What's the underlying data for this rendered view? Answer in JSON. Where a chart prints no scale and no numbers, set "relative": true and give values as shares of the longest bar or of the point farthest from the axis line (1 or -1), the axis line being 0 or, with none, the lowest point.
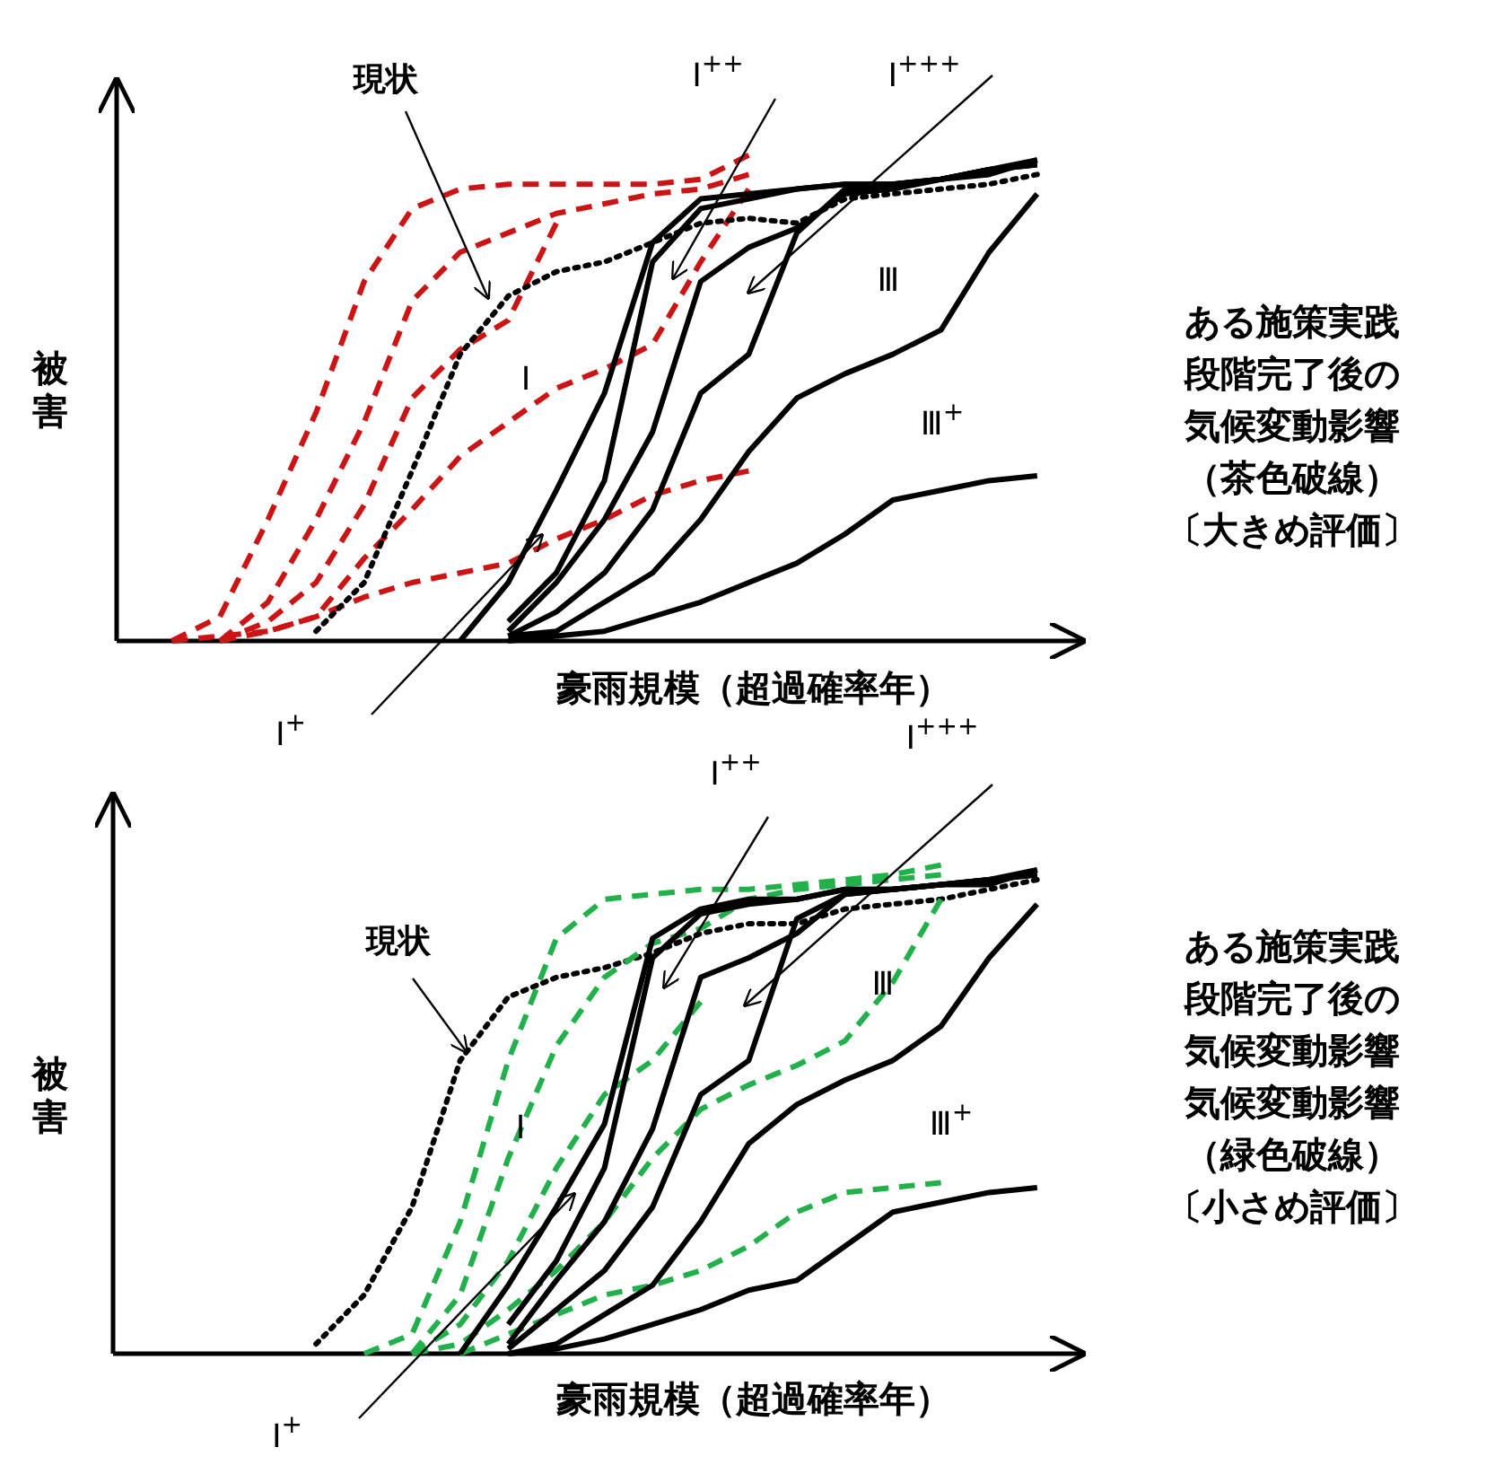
{
  "chart_data": [
    {
      "type": "line",
      "relative": true,
      "xlabel": "豪雨規模（超過確率年）",
      "ylabel": "被害",
      "categories": [
        null,
        null,
        null,
        null,
        null,
        null,
        null,
        null,
        null,
        null,
        null,
        null,
        null,
        null,
        null,
        null,
        null,
        null,
        null
      ],
      "series": [
        {
          "color": "#cc1414",
          "line_style": "dashed",
          "values": [
            0,
            0.05,
            0.25,
            0.47,
            0.74,
            0.89,
            0.93,
            0.94,
            0.94,
            0.94,
            0.94,
            0.95,
            1,
            null,
            null,
            null,
            null,
            null,
            null
          ]
        },
        {
          "color": "#cc1414",
          "line_style": "dashed",
          "values": [
            null,
            0,
            0.08,
            0.25,
            0.45,
            0.7,
            0.8,
            0.84,
            0.88,
            0.9,
            0.92,
            0.93,
            0.96,
            null,
            null,
            null,
            null,
            null,
            null
          ]
        },
        {
          "color": "#cc1414",
          "line_style": "dashed",
          "values": [
            null,
            0,
            0.04,
            0.12,
            0.28,
            0.5,
            0.6,
            0.66,
            0.86,
            null,
            null,
            null,
            null,
            null,
            null,
            null,
            null,
            null,
            null
          ]
        },
        {
          "color": "#cc1414",
          "line_style": "dashed",
          "values": [
            null,
            0,
            0.02,
            0.05,
            0.17,
            0.27,
            0.38,
            0.45,
            0.52,
            0.56,
            0.61,
            0.78,
            0.93,
            null,
            null,
            null,
            null,
            null,
            null
          ]
        },
        {
          "color": "#cc1414",
          "line_style": "dashed",
          "values": [
            0,
            0.01,
            0.02,
            0.05,
            0.09,
            0.12,
            0.14,
            0.16,
            0.21,
            0.25,
            0.3,
            0.33,
            0.35,
            null,
            null,
            null,
            null,
            null,
            null
          ]
        },
        {
          "name": "現状",
          "color": "#000000",
          "line_style": "dotted",
          "values": [
            null,
            null,
            null,
            0.02,
            0.12,
            0.35,
            0.59,
            0.71,
            0.76,
            0.78,
            0.82,
            0.86,
            0.87,
            0.86,
            0.91,
            0.92,
            0.93,
            0.94,
            0.96
          ]
        },
        {
          "color": "#000000",
          "line_style": "solid",
          "values": [
            null,
            null,
            null,
            null,
            null,
            null,
            0,
            0.12,
            0.31,
            0.51,
            0.82,
            0.91,
            0.92,
            0.93,
            0.94,
            0.94,
            0.95,
            0.97,
            0.99
          ]
        },
        {
          "color": "#000000",
          "line_style": "solid",
          "values": [
            null,
            null,
            null,
            null,
            null,
            null,
            null,
            0.04,
            0.14,
            0.33,
            0.78,
            0.89,
            0.91,
            0.93,
            0.94,
            0.94,
            0.95,
            0.97,
            0.98
          ]
        },
        {
          "color": "#000000",
          "line_style": "solid",
          "values": [
            null,
            null,
            null,
            null,
            null,
            null,
            null,
            0.02,
            0.12,
            0.25,
            0.43,
            0.74,
            0.81,
            0.85,
            0.92,
            0.93,
            0.95,
            0.96,
            0.99
          ]
        },
        {
          "color": "#000000",
          "line_style": "solid",
          "values": [
            null,
            null,
            null,
            null,
            null,
            null,
            null,
            0.01,
            0.06,
            0.14,
            0.27,
            0.51,
            0.59,
            0.84,
            0.93,
            0.94,
            0.95,
            0.97,
            0.98
          ]
        },
        {
          "color": "#000000",
          "line_style": "solid",
          "values": [
            null,
            null,
            null,
            null,
            null,
            null,
            null,
            0.01,
            0.02,
            0.08,
            0.14,
            0.25,
            0.39,
            0.5,
            0.55,
            0.59,
            0.64,
            0.8,
            0.92
          ]
        },
        {
          "color": "#000000",
          "line_style": "solid",
          "values": [
            null,
            null,
            null,
            null,
            null,
            null,
            null,
            0,
            0.01,
            0.02,
            0.05,
            0.08,
            0.12,
            0.16,
            0.22,
            0.29,
            0.31,
            0.33,
            0.34
          ]
        }
      ],
      "annotations": [
        "Ⅰ$^{++}$",
        "Ⅰ$^{+++}$",
        "Ⅲ",
        "Ⅲ$^{+}$",
        "Ⅰ",
        "Ⅰ$^{+}$",
        "ある施策実践",
        "段階完了後の",
        "気候変動影響",
        "（茶色破線）",
        "〔大きめ評価〕"
      ]
    },
    {
      "type": "line",
      "relative": true,
      "xlabel": "豪雨規模（超過確率年）",
      "ylabel": "被害",
      "categories": [
        null,
        null,
        null,
        null,
        null,
        null,
        null,
        null,
        null,
        null,
        null,
        null,
        null,
        null,
        null,
        null,
        null,
        null,
        null
      ],
      "series": [
        {
          "name": "現状",
          "color": "#000000",
          "line_style": "dotted",
          "values": [
            null,
            null,
            null,
            0.02,
            0.12,
            0.3,
            0.6,
            0.73,
            0.77,
            0.79,
            0.82,
            0.86,
            0.88,
            0.88,
            0.91,
            0.92,
            0.93,
            0.95,
            0.97
          ]
        },
        {
          "color": "#22b04b",
          "line_style": "dashed",
          "values": [
            null,
            null,
            null,
            null,
            0,
            0.04,
            0.27,
            0.6,
            0.85,
            0.93,
            0.94,
            0.95,
            0.95,
            0.96,
            0.97,
            0.98,
            1,
            null,
            null
          ]
        },
        {
          "color": "#22b04b",
          "line_style": "dashed",
          "values": [
            null,
            null,
            null,
            null,
            null,
            0,
            0.12,
            0.4,
            0.63,
            0.77,
            0.84,
            0.87,
            0.93,
            0.95,
            0.96,
            0.97,
            0.98,
            null,
            null
          ]
        },
        {
          "color": "#22b04b",
          "line_style": "dashed",
          "values": [
            null,
            null,
            null,
            null,
            null,
            0,
            0.06,
            0.19,
            0.38,
            0.53,
            0.6,
            0.72,
            null,
            null,
            null,
            null,
            null,
            null,
            null
          ]
        },
        {
          "color": "#22b04b",
          "line_style": "dashed",
          "values": [
            null,
            null,
            null,
            null,
            null,
            0,
            0.02,
            0.09,
            0.17,
            0.27,
            0.4,
            0.5,
            0.55,
            0.59,
            0.64,
            0.76,
            0.93,
            null,
            null
          ]
        },
        {
          "color": "#22b04b",
          "line_style": "dashed",
          "values": [
            null,
            null,
            null,
            null,
            null,
            null,
            0,
            0.04,
            0.08,
            0.12,
            0.14,
            0.17,
            0.22,
            0.29,
            0.33,
            0.34,
            0.35,
            null,
            null
          ]
        },
        {
          "color": "#000000",
          "line_style": "solid",
          "values": [
            null,
            null,
            null,
            null,
            null,
            null,
            0,
            0.14,
            0.3,
            0.47,
            0.85,
            0.91,
            0.93,
            0.93,
            0.95,
            0.95,
            0.96,
            0.97,
            0.99
          ]
        },
        {
          "color": "#000000",
          "line_style": "solid",
          "values": [
            null,
            null,
            null,
            null,
            null,
            null,
            null,
            0.06,
            0.19,
            0.38,
            0.81,
            0.9,
            0.92,
            0.93,
            0.95,
            0.95,
            0.96,
            0.97,
            0.98
          ]
        },
        {
          "color": "#000000",
          "line_style": "solid",
          "values": [
            null,
            null,
            null,
            null,
            null,
            null,
            null,
            0.02,
            0.15,
            0.27,
            0.46,
            0.77,
            0.81,
            0.86,
            0.94,
            0.95,
            0.96,
            0.96,
            0.99
          ]
        },
        {
          "color": "#000000",
          "line_style": "solid",
          "values": [
            null,
            null,
            null,
            null,
            null,
            null,
            null,
            0.01,
            0.09,
            0.17,
            0.3,
            0.53,
            0.6,
            0.89,
            0.94,
            0.95,
            0.96,
            0.97,
            0.98
          ]
        },
        {
          "color": "#000000",
          "line_style": "solid",
          "values": [
            null,
            null,
            null,
            null,
            null,
            null,
            null,
            0,
            0.02,
            0.08,
            0.14,
            0.27,
            0.43,
            0.51,
            0.56,
            0.6,
            0.67,
            0.81,
            0.92
          ]
        },
        {
          "color": "#000000",
          "line_style": "solid",
          "values": [
            null,
            null,
            null,
            null,
            null,
            null,
            null,
            0,
            0.01,
            0.03,
            0.06,
            0.09,
            0.13,
            0.15,
            0.22,
            0.29,
            0.31,
            0.33,
            0.34
          ]
        }
      ],
      "annotations": [
        "Ⅰ$^{++}$",
        "Ⅰ$^{+++}$",
        "Ⅲ",
        "Ⅲ$^{+}$",
        "Ⅰ",
        "Ⅰ$^{+}$",
        "ある施策実践",
        "段階完了後の",
        "気候変動影響",
        "気候変動影響",
        "（緑色破線）",
        "〔小さめ評価〕"
      ]
    }
  ]
}
